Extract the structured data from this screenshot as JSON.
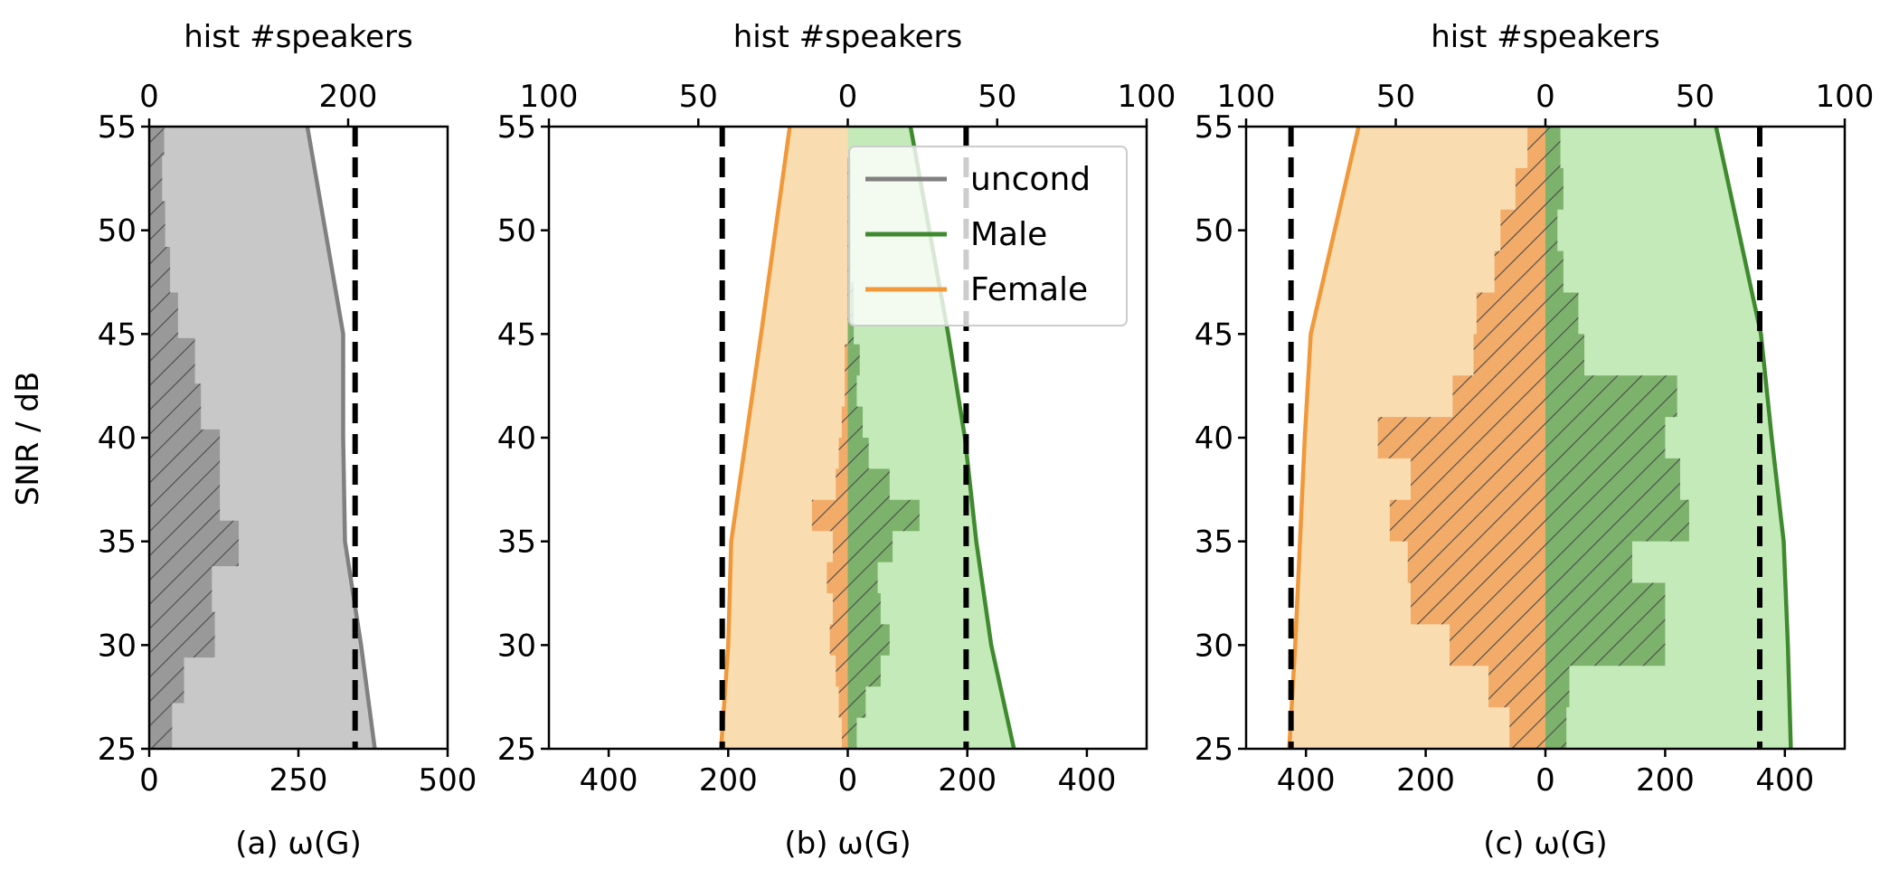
{
  "y_label": "SNR / dB",
  "top_axis_label": "hist #speakers",
  "legend": [
    {
      "label": "uncond",
      "color": "#808080"
    },
    {
      "label": "Male",
      "color": "#3f8a2f"
    },
    {
      "label": "Female",
      "color": "#f0983a"
    }
  ],
  "colors": {
    "uncond_fill": "#c8c8c8",
    "uncond_hist": "#999999",
    "male_fill": "#c3eab8",
    "male_hist": "#7cb26c",
    "female_fill": "#f9dcb0",
    "female_hist": "#f2ab68",
    "hatch": "#555555"
  },
  "chart_data": [
    {
      "type": "area",
      "panel": "a",
      "xlabel": "(a) ω(G)",
      "top_xlabel": "hist #speakers",
      "ylabel": "SNR / dB",
      "xlim": [
        0,
        500
      ],
      "xticks": [
        "0",
        "250",
        "500"
      ],
      "top_xlim": [
        0,
        300
      ],
      "top_xticks": [
        "0",
        "200"
      ],
      "ylim": [
        25,
        55
      ],
      "yticks": [
        "25",
        "30",
        "35",
        "40",
        "45",
        "50",
        "55"
      ],
      "dashed_line_x": 345,
      "series": [
        {
          "name": "uncond",
          "x": [
            378,
            355,
            328,
            325,
            325,
            265
          ],
          "y": [
            25,
            30,
            35,
            40,
            45,
            55
          ]
        }
      ],
      "histogram": {
        "bin_edges": [
          25,
          27.2,
          29.4,
          31.6,
          33.8,
          36,
          38.2,
          40.4,
          42.6,
          44.8,
          47,
          49.2,
          51.4,
          53.6,
          55
        ],
        "counts": [
          23,
          35,
          66,
          63,
          90,
          71,
          71,
          52,
          46,
          29,
          21,
          16,
          13,
          15
        ]
      }
    },
    {
      "type": "area",
      "panel": "b",
      "xlabel": "(b) ω(G)",
      "top_xlabel": "hist #speakers",
      "xlim": [
        -500,
        500
      ],
      "xticks": [
        "400",
        "200",
        "0",
        "200",
        "400"
      ],
      "top_xlim": [
        -100,
        100
      ],
      "top_xticks": [
        "100",
        "50",
        "0",
        "50",
        "100"
      ],
      "ylim": [
        25,
        55
      ],
      "yticks": [
        "25",
        "30",
        "35",
        "40",
        "45",
        "50",
        "55"
      ],
      "dashed_lines_x": [
        -210,
        198
      ],
      "series": [
        {
          "name": "Male",
          "x": [
            278,
            240,
            215,
            196,
            168,
            105
          ],
          "y": [
            25,
            30,
            35,
            40,
            45,
            55
          ]
        },
        {
          "name": "Female",
          "x": [
            212,
            200,
            195,
            170,
            145,
            97
          ],
          "y": [
            25,
            30,
            35,
            40,
            45,
            55
          ]
        }
      ],
      "histogram_male": {
        "bin_edges": [
          25,
          26.5,
          28,
          29.5,
          31,
          32.5,
          34,
          35.5,
          37,
          38.5,
          40,
          41.5,
          43,
          44.5,
          46,
          47.5,
          49,
          50.5,
          52,
          53.5,
          55
        ],
        "counts": [
          3,
          6,
          11,
          14,
          11,
          10,
          15,
          24,
          14,
          7,
          5,
          3,
          4,
          2,
          2,
          1,
          1,
          1,
          1,
          0
        ]
      },
      "histogram_female": {
        "bin_edges": [
          25,
          26.5,
          28,
          29.5,
          31,
          32.5,
          34,
          35.5,
          37,
          38.5,
          40,
          41.5,
          43,
          44.5,
          46,
          47.5,
          49,
          50.5,
          52,
          53.5,
          55
        ],
        "counts": [
          2,
          3,
          4,
          6,
          5,
          7,
          5,
          12,
          4,
          3,
          2,
          1,
          1,
          0,
          0,
          0,
          0,
          0,
          0,
          0
        ]
      }
    },
    {
      "type": "area",
      "panel": "c",
      "xlabel": "(c) ω(G)",
      "top_xlabel": "hist #speakers",
      "xlim": [
        -500,
        500
      ],
      "xticks": [
        "400",
        "200",
        "0",
        "200",
        "400"
      ],
      "top_xlim": [
        -100,
        100
      ],
      "top_xticks": [
        "100",
        "50",
        "0",
        "50",
        "100"
      ],
      "ylim": [
        25,
        55
      ],
      "yticks": [
        "25",
        "30",
        "35",
        "40",
        "45",
        "50",
        "55"
      ],
      "dashed_lines_x": [
        -425,
        358
      ],
      "series": [
        {
          "name": "Male",
          "x": [
            410,
            405,
            398,
            378,
            360,
            285
          ],
          "y": [
            25,
            30,
            35,
            40,
            45,
            55
          ]
        },
        {
          "name": "Female",
          "x": [
            428,
            418,
            410,
            402,
            392,
            312
          ],
          "y": [
            25,
            30,
            35,
            40,
            45,
            55
          ]
        }
      ],
      "histogram_male": {
        "bin_edges": [
          25,
          27,
          29,
          31,
          33,
          35,
          37,
          39,
          41,
          43,
          45,
          47,
          49,
          51,
          53,
          55
        ],
        "counts": [
          7,
          8,
          40,
          40,
          29,
          48,
          45,
          40,
          44,
          13,
          11,
          6,
          4,
          6,
          5
        ]
      },
      "histogram_female": {
        "bin_edges": [
          25,
          27,
          29,
          31,
          33,
          35,
          37,
          39,
          41,
          43,
          45,
          47,
          49,
          51,
          53,
          55
        ],
        "counts": [
          12,
          19,
          32,
          45,
          46,
          52,
          45,
          56,
          31,
          24,
          23,
          17,
          15,
          10,
          6
        ]
      }
    }
  ]
}
